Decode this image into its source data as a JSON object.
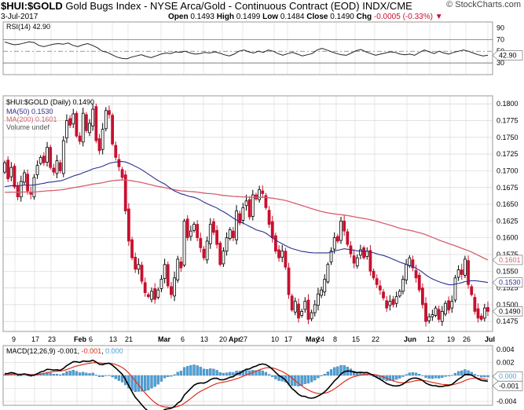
{
  "header": {
    "symbol": "$HUI:$GOLD",
    "description": "Gold Bugs Index - NYSE Arca/Gold - Continuous Contract (EOD)",
    "exchange": "INDX/CME",
    "date": "3-Jul-2017",
    "open_label": "Open",
    "open": "0.1493",
    "high_label": "High",
    "high": "0.1499",
    "low_label": "Low",
    "low": "0.1484",
    "close_label": "Close",
    "close": "0.1490",
    "chg_label": "Chg",
    "chg": "-0.0005 (-0.33%)",
    "watermark": "© StockCharts.com"
  },
  "colors": {
    "up": "#000000",
    "down": "#c8102e",
    "ma50": "#2b2f8f",
    "ma200": "#d6606e",
    "macd_hist": "#4f9fd6",
    "macd_line": "#000000",
    "macd_signal": "#e0301e",
    "grid": "#d8d8d8"
  },
  "chart_data": [
    {
      "type": "line",
      "panel": "rsi",
      "label": "RSI(14)",
      "last": "42.90",
      "ylim": [
        10,
        100
      ],
      "ticks": [
        "90",
        "70",
        "50",
        "30"
      ],
      "reference_lines": [
        70,
        50,
        30
      ],
      "values": [
        66,
        63,
        61,
        62,
        64,
        66,
        65,
        60,
        58,
        60,
        62,
        63,
        62,
        64,
        60,
        58,
        61,
        63,
        60,
        56,
        50,
        48,
        44,
        40,
        38,
        37,
        40,
        42,
        44,
        41,
        39,
        42,
        45,
        47,
        46,
        49,
        48,
        50,
        47,
        45,
        46,
        48,
        47,
        49,
        47,
        44,
        42,
        45,
        50,
        52,
        49,
        47,
        50,
        48,
        52,
        50,
        46,
        43,
        46,
        48,
        45,
        42,
        44,
        46,
        52,
        55,
        52,
        49,
        46,
        44,
        43,
        47,
        51,
        53,
        49,
        46,
        43,
        45,
        47,
        49,
        48,
        45,
        44,
        45,
        43,
        48,
        52,
        49,
        46,
        50,
        47,
        45,
        48,
        50,
        52,
        50,
        47,
        44,
        42,
        43
      ]
    },
    {
      "type": "candlestick",
      "panel": "price",
      "label": "$HUI:$GOLD (Daily)",
      "last": "0.1490",
      "ylim": [
        0.146,
        0.1812
      ],
      "ticks": [
        "0.1800",
        "0.1775",
        "0.1750",
        "0.1725",
        "0.1700",
        "0.1675",
        "0.1650",
        "0.1625",
        "0.1600",
        "0.1575",
        "0.1550",
        "0.1525",
        "0.1500",
        "0.1475"
      ],
      "x_labels": [
        "9",
        "17",
        "23",
        "Feb",
        "6",
        "13",
        "21",
        "Mar",
        "6",
        "13",
        "20",
        "27",
        "Apr",
        "10",
        "17",
        "24",
        "May",
        "8",
        "15",
        "22",
        "Jun",
        "12",
        "19",
        "26",
        "Jul"
      ],
      "last_labels": [
        "0.1601",
        "0.1530",
        "0.1490"
      ],
      "series": [
        {
          "name": "MA(50)",
          "last": "0.1530"
        },
        {
          "name": "MA(200)",
          "last": "0.1601"
        },
        {
          "name": "Volume undef"
        }
      ],
      "start": 0.1702,
      "closes": [
        0.1712,
        0.1688,
        0.1705,
        0.1676,
        0.1661,
        0.1684,
        0.1697,
        0.167,
        0.1665,
        0.169,
        0.1708,
        0.172,
        0.1712,
        0.1735,
        0.1705,
        0.1698,
        0.1715,
        0.17,
        0.1745,
        0.1775,
        0.1768,
        0.1785,
        0.1752,
        0.1744,
        0.1786,
        0.176,
        0.1771,
        0.1792,
        0.1745,
        0.173,
        0.1762,
        0.179,
        0.1784,
        0.174,
        0.172,
        0.1706,
        0.169,
        0.164,
        0.1595,
        0.157,
        0.1553,
        0.156,
        0.1535,
        0.1518,
        0.1512,
        0.152,
        0.1508,
        0.1522,
        0.1538,
        0.156,
        0.1528,
        0.1515,
        0.154,
        0.1568,
        0.1555,
        0.1625,
        0.16,
        0.161,
        0.162,
        0.16,
        0.1585,
        0.157,
        0.1595,
        0.162,
        0.1608,
        0.159,
        0.156,
        0.158,
        0.16,
        0.1612,
        0.16,
        0.164,
        0.1622,
        0.1645,
        0.1655,
        0.1631,
        0.1664,
        0.1658,
        0.1672,
        0.1666,
        0.1645,
        0.162,
        0.16,
        0.158,
        0.157,
        0.158,
        0.1556,
        0.1515,
        0.1492,
        0.1505,
        0.148,
        0.149,
        0.1505,
        0.1478,
        0.1488,
        0.15,
        0.1516,
        0.1522,
        0.1538,
        0.156,
        0.158,
        0.16,
        0.1595,
        0.1625,
        0.161,
        0.159,
        0.1576,
        0.1562,
        0.157,
        0.1582,
        0.157,
        0.158,
        0.155,
        0.154,
        0.153,
        0.1522,
        0.151,
        0.1495,
        0.1505,
        0.15,
        0.1512,
        0.152,
        0.1538,
        0.156,
        0.157,
        0.1555,
        0.154,
        0.1522,
        0.15,
        0.1475,
        0.1482,
        0.1485,
        0.1495,
        0.1478,
        0.149,
        0.1502,
        0.1492,
        0.1505,
        0.154,
        0.1552,
        0.1545,
        0.1568,
        0.153,
        0.1515,
        0.149,
        0.148,
        0.1478,
        0.1495,
        0.149
      ]
    },
    {
      "type": "bar",
      "panel": "macd",
      "label": "MACD(12,26,9)",
      "macd_last": "-0.001",
      "signal_last": "-0.001",
      "hist_last": "0.000",
      "ylim": [
        -0.0046,
        0.0046
      ],
      "ticks": [
        "0.004",
        "0.002",
        "0.000",
        "-0.002",
        "-0.004"
      ],
      "last_labels": [
        "0.000",
        "-0.001"
      ]
    }
  ]
}
